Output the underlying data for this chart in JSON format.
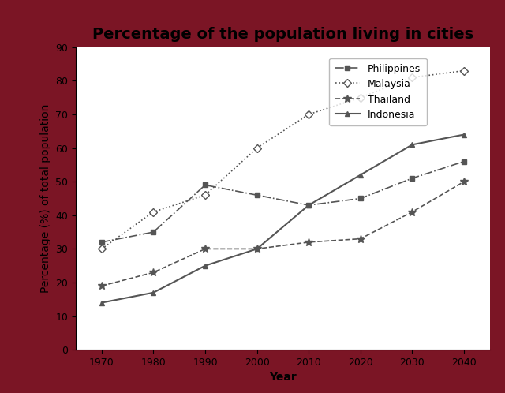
{
  "title": "Percentage of the population living in cities",
  "xlabel": "Year",
  "ylabel": "Percentage (%) of total population",
  "years": [
    1970,
    1980,
    1990,
    2000,
    2010,
    2020,
    2030,
    2040
  ],
  "philippines": [
    32,
    35,
    49,
    46,
    43,
    45,
    51,
    56
  ],
  "malaysia": [
    30,
    41,
    46,
    60,
    70,
    75,
    81,
    83
  ],
  "thailand": [
    19,
    23,
    30,
    30,
    32,
    33,
    41,
    50
  ],
  "indonesia": [
    14,
    17,
    25,
    30,
    43,
    52,
    61,
    64
  ],
  "line_color": "#555555",
  "background_outer": "#7B1525",
  "background_inner": "#ffffff",
  "ylim": [
    0,
    90
  ],
  "yticks": [
    0,
    10,
    20,
    30,
    40,
    50,
    60,
    70,
    80,
    90
  ],
  "xlim": [
    1965,
    2045
  ],
  "xticks": [
    1970,
    1980,
    1990,
    2000,
    2010,
    2020,
    2030,
    2040
  ],
  "legend_labels": [
    "Philippines",
    "Malaysia",
    "Thailand",
    "Indonesia"
  ],
  "title_fontsize": 14,
  "label_fontsize": 10,
  "tick_fontsize": 9,
  "legend_fontsize": 9
}
